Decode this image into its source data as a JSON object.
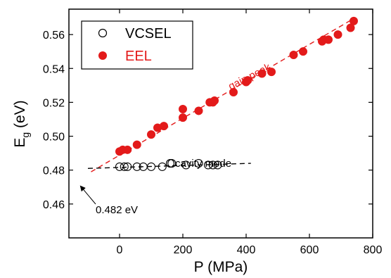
{
  "chart_data": {
    "type": "scatter",
    "xlabel": "P (MPa)",
    "ylabel_main": "E",
    "ylabel_sub": "g",
    "ylabel_unit": " (eV)",
    "xlim": [
      -160,
      800
    ],
    "ylim": [
      0.44,
      0.575
    ],
    "x_ticks": [
      0,
      200,
      400,
      600,
      800
    ],
    "y_ticks": [
      0.46,
      0.48,
      0.5,
      0.52,
      0.54,
      0.56
    ],
    "y_tick_labels": [
      "0.46",
      "0.48",
      "0.50",
      "0.52",
      "0.54",
      "0.56"
    ],
    "legend_position": "top-left",
    "colors": {
      "vcsel": "#000000",
      "eel": "#e31a1a"
    },
    "series": [
      {
        "name": "VCSEL",
        "marker": "open-circle",
        "x": [
          0,
          15,
          25,
          55,
          75,
          100,
          135,
          160,
          165,
          210,
          250,
          280,
          295,
          310
        ],
        "y": [
          0.482,
          0.482,
          0.482,
          0.482,
          0.482,
          0.482,
          0.482,
          0.484,
          0.484,
          0.483,
          0.484,
          0.483,
          0.483,
          0.483
        ]
      },
      {
        "name": "EEL",
        "marker": "filled-circle",
        "x": [
          0,
          10,
          25,
          55,
          100,
          120,
          140,
          200,
          200,
          250,
          285,
          295,
          300,
          360,
          400,
          405,
          450,
          480,
          550,
          580,
          640,
          645,
          660,
          690,
          730,
          740
        ],
        "y": [
          0.491,
          0.492,
          0.492,
          0.495,
          0.501,
          0.505,
          0.506,
          0.511,
          0.516,
          0.515,
          0.52,
          0.52,
          0.521,
          0.526,
          0.532,
          0.533,
          0.537,
          0.538,
          0.548,
          0.55,
          0.556,
          0.557,
          0.557,
          0.56,
          0.564,
          0.568
        ]
      }
    ],
    "fit_lines": [
      {
        "series": "EEL",
        "x": [
          -90,
          745
        ],
        "y": [
          0.479,
          0.57
        ]
      },
      {
        "series": "VCSEL",
        "x": [
          -100,
          415
        ],
        "y": [
          0.481,
          0.484
        ]
      }
    ],
    "annotations": {
      "gain_peak": "gain peak",
      "cavity_mode": "cavity mode",
      "intersection": "0.482 eV"
    }
  }
}
